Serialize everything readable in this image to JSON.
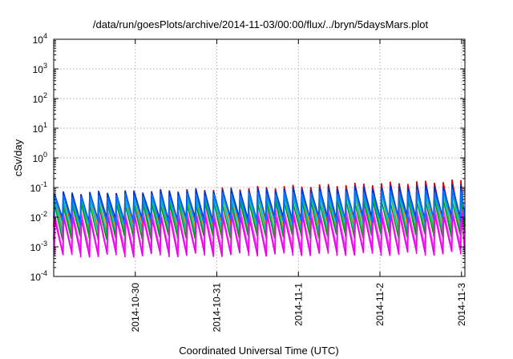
{
  "chart_data": {
    "type": "line",
    "title": "/data/run/goesPlots/archive/2014-11-03/00:00/flux/../bryn/5daysMars.plot",
    "xlabel": "Coordinated Universal Time (UTC)",
    "ylabel": "cSv/day",
    "yscale": "log",
    "grid": true,
    "xlim": [
      "2014-10-29 00:00",
      "2014-11-03 01:00"
    ],
    "ylim": [
      0.0001,
      10000
    ],
    "x_ticks": [
      {
        "date": "2014-10-30",
        "label": "2014-10-30"
      },
      {
        "date": "2014-10-31",
        "label": "2014-10-31"
      },
      {
        "date": "2014-11-01",
        "label": "2014-11-1"
      },
      {
        "date": "2014-11-02",
        "label": "2014-11-2"
      },
      {
        "date": "2014-11-03",
        "label": "2014-11-3"
      }
    ],
    "y_ticks": [
      {
        "base": "10",
        "exp": "-4",
        "value": 0.0001
      },
      {
        "base": "10",
        "exp": "-3",
        "value": 0.001
      },
      {
        "base": "10",
        "exp": "-2",
        "value": 0.01
      },
      {
        "base": "10",
        "exp": "-1",
        "value": 0.1
      },
      {
        "base": "10",
        "exp": "0",
        "value": 1
      },
      {
        "base": "10",
        "exp": "1",
        "value": 10
      },
      {
        "base": "10",
        "exp": "2",
        "value": 100
      },
      {
        "base": "10",
        "exp": "3",
        "value": 1000
      },
      {
        "base": "10",
        "exp": "4",
        "value": 10000
      }
    ],
    "sawtooth_period_hours": 2.6,
    "series": [
      {
        "color": "#e00000",
        "peak_start": 0.06,
        "peak_end": 0.17,
        "trough_start": 0.004,
        "trough_end": 0.006
      },
      {
        "color": "#ff9900",
        "peak_start": 0.055,
        "peak_end": 0.1,
        "trough_start": 0.004,
        "trough_end": 0.005
      },
      {
        "color": "#00bbbb",
        "peak_start": 0.035,
        "peak_end": 0.06,
        "trough_start": 0.0025,
        "trough_end": 0.003
      },
      {
        "color": "#009900",
        "peak_start": 0.028,
        "peak_end": 0.04,
        "trough_start": 0.002,
        "trough_end": 0.0025
      },
      {
        "color": "#ff33ff",
        "peak_start": 0.014,
        "peak_end": 0.02,
        "trough_start": 0.0007,
        "trough_end": 0.0009
      },
      {
        "color": "#ee00ee",
        "peak_start": 0.009,
        "peak_end": 0.012,
        "trough_start": 0.0005,
        "trough_end": 0.0006
      },
      {
        "color": "#0033cc",
        "peak_start": 0.065,
        "peak_end": 0.12,
        "trough_start": 0.008,
        "trough_end": 0.01
      },
      {
        "color": "#0077ff",
        "peak_start": 0.05,
        "peak_end": 0.08,
        "trough_start": 0.006,
        "trough_end": 0.008
      }
    ]
  }
}
